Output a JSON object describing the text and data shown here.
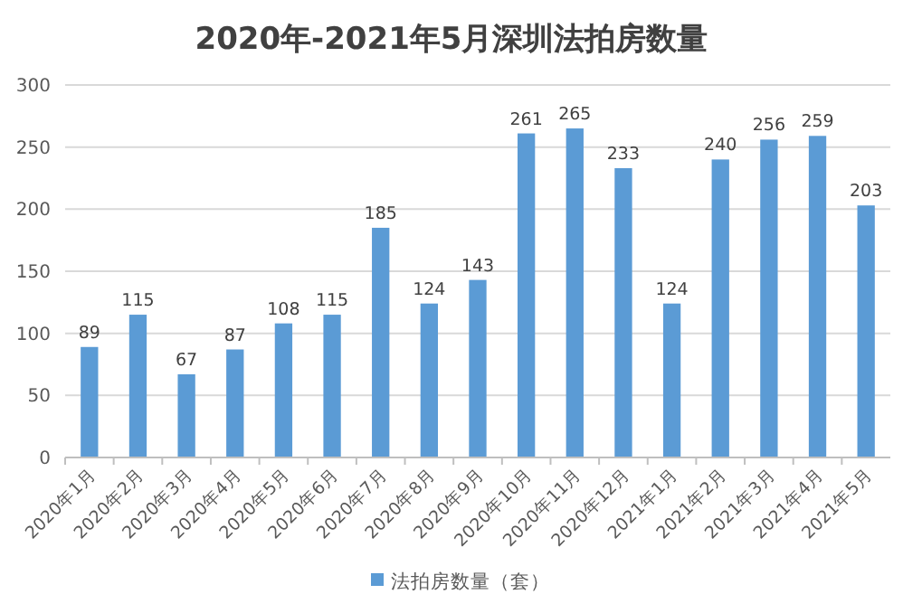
{
  "chart_data": {
    "type": "bar",
    "title": "2020年-2021年5月深圳法拍房数量",
    "categories": [
      "2020年1月",
      "2020年2月",
      "2020年3月",
      "2020年4月",
      "2020年5月",
      "2020年6月",
      "2020年7月",
      "2020年8月",
      "2020年9月",
      "2020年10月",
      "2020年11月",
      "2020年12月",
      "2021年1月",
      "2021年2月",
      "2021年3月",
      "2021年4月",
      "2021年5月"
    ],
    "series": [
      {
        "name": "法拍房数量（套）",
        "color": "#5b9bd5",
        "values": [
          89,
          115,
          67,
          87,
          108,
          115,
          185,
          124,
          143,
          261,
          265,
          233,
          124,
          240,
          256,
          259,
          203
        ]
      }
    ],
    "ylim": [
      0,
      300
    ],
    "yticks": [
      0,
      50,
      100,
      150,
      200,
      250,
      300
    ],
    "grid": "y",
    "legend": "bottom",
    "data_labels": true
  }
}
